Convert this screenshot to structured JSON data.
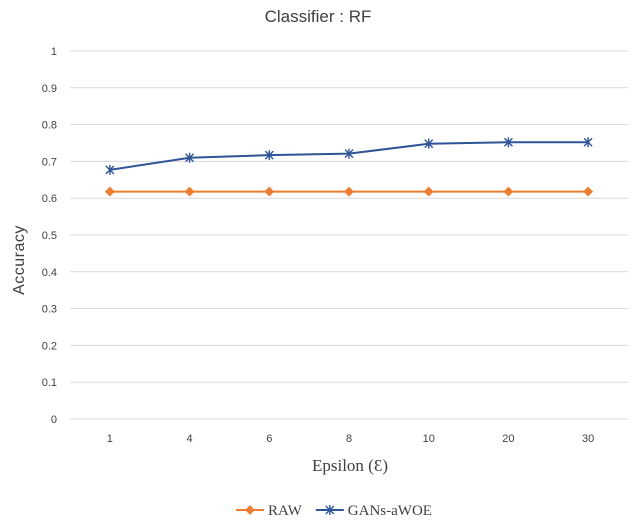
{
  "chart_data": {
    "type": "line",
    "title": "Classifier : RF",
    "xlabel": "Epsilon (Ɛ)",
    "ylabel": "Accuracy",
    "categories": [
      "1",
      "4",
      "6",
      "8",
      "10",
      "20",
      "30"
    ],
    "ylim": [
      0,
      1
    ],
    "yticks": [
      "0",
      "0.1",
      "0.2",
      "0.3",
      "0.4",
      "0.5",
      "0.6",
      "0.7",
      "0.8",
      "0.9",
      "1"
    ],
    "grid": true,
    "legend_position": "bottom",
    "series": [
      {
        "name": "RAW",
        "color": "#ed7d31",
        "marker": "diamond",
        "values": [
          0.618,
          0.618,
          0.618,
          0.618,
          0.618,
          0.618,
          0.618
        ]
      },
      {
        "name": "GANs-aWOE",
        "color": "#2f5597",
        "marker": "asterisk",
        "values": [
          0.677,
          0.71,
          0.717,
          0.721,
          0.748,
          0.752,
          0.752
        ]
      }
    ]
  }
}
